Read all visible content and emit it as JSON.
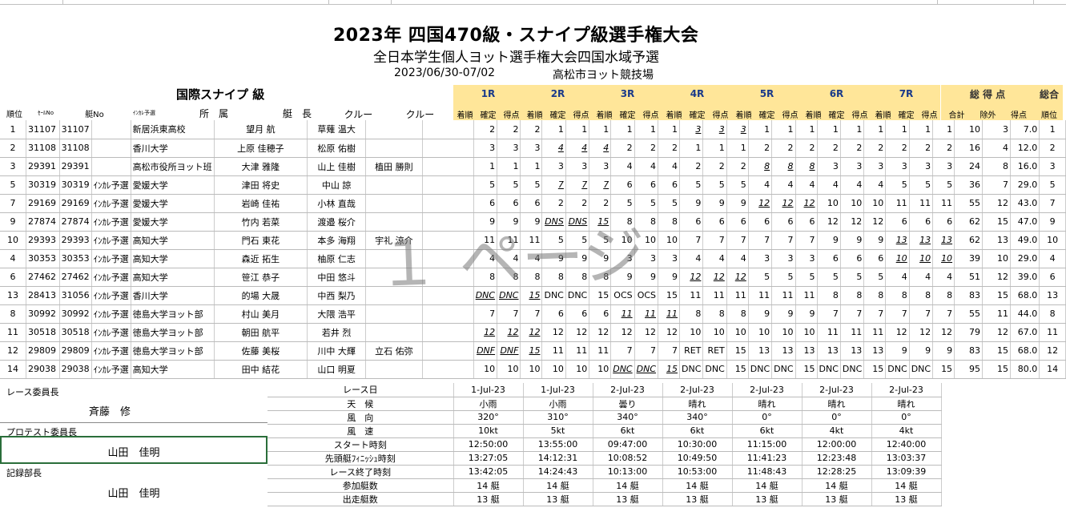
{
  "title": "2023年 四国470級・スナイプ級選手権大会",
  "subtitle": "全日本学生個人ヨット選手権大会四国水域予選",
  "dates": "2023/06/30-07/02",
  "venue": "高松市ヨット競技場",
  "class_name": "国際スナイプ 級",
  "watermark": "１ ページ",
  "race_headers": [
    "1R",
    "2R",
    "3R",
    "4R",
    "5R",
    "6R",
    "7R"
  ],
  "total_header": "総 得 点",
  "overall_header": "総合",
  "columns": {
    "rank": "順位",
    "sail_no": "ｾｰﾙNo",
    "hull_no": "艇No",
    "incare": "ｲﾝｶﾚ予選",
    "affiliation": "所　属",
    "skipper": "艇　長",
    "crew1": "クルー",
    "crew2": "クルー",
    "arrival": "着順",
    "confirmed": "確定",
    "points": "得点",
    "total": "合計",
    "excluded": "除外",
    "score": "得点",
    "overall_rank": "順位"
  },
  "rows": [
    {
      "rank": "1",
      "sail": "31107",
      "hull": "31107",
      "inc": "",
      "aff": "新居浜東高校",
      "skip": "望月 航",
      "crew1": "草薙 温大",
      "crew2": "",
      "races": [
        [
          "2",
          "2",
          "2"
        ],
        [
          "1",
          "1",
          "1"
        ],
        [
          "1",
          "1",
          "1"
        ],
        [
          "3",
          "3",
          "3"
        ],
        [
          "1",
          "1",
          "1"
        ],
        [
          "1",
          "1",
          "1"
        ],
        [
          "1",
          "1",
          "1"
        ]
      ],
      "tot": "10",
      "exc": "3",
      "score": "7.0",
      "ov": "1",
      "em": [
        3
      ]
    },
    {
      "rank": "2",
      "sail": "31108",
      "hull": "31108",
      "inc": "",
      "aff": "香川大学",
      "skip": "上原 佳穂子",
      "crew1": "松原 佑樹",
      "crew2": "",
      "races": [
        [
          "3",
          "3",
          "3"
        ],
        [
          "4",
          "4",
          "4"
        ],
        [
          "2",
          "2",
          "2"
        ],
        [
          "1",
          "1",
          "1"
        ],
        [
          "2",
          "2",
          "2"
        ],
        [
          "2",
          "2",
          "2"
        ],
        [
          "2",
          "2",
          "2"
        ]
      ],
      "tot": "16",
      "exc": "4",
      "score": "12.0",
      "ov": "2",
      "em": [
        1
      ]
    },
    {
      "rank": "3",
      "sail": "29391",
      "hull": "29391",
      "inc": "",
      "aff": "高松市役所ヨット班",
      "skip": "大津 雅隆",
      "crew1": "山上 佳樹",
      "crew2": "植田 勝則",
      "races": [
        [
          "1",
          "1",
          "1"
        ],
        [
          "3",
          "3",
          "3"
        ],
        [
          "4",
          "4",
          "4"
        ],
        [
          "2",
          "2",
          "2"
        ],
        [
          "8",
          "8",
          "8"
        ],
        [
          "3",
          "3",
          "3"
        ],
        [
          "3",
          "3",
          "3"
        ]
      ],
      "tot": "24",
      "exc": "8",
      "score": "16.0",
      "ov": "3",
      "em": [
        4
      ]
    },
    {
      "rank": "5",
      "sail": "30319",
      "hull": "30319",
      "inc": "ｲﾝｶﾚ予選",
      "aff": "愛媛大学",
      "skip": "津田 将史",
      "crew1": "中山 諒",
      "crew2": "",
      "races": [
        [
          "5",
          "5",
          "5"
        ],
        [
          "7",
          "7",
          "7"
        ],
        [
          "6",
          "6",
          "6"
        ],
        [
          "5",
          "5",
          "5"
        ],
        [
          "4",
          "4",
          "4"
        ],
        [
          "4",
          "4",
          "4"
        ],
        [
          "5",
          "5",
          "5"
        ]
      ],
      "tot": "36",
      "exc": "7",
      "score": "29.0",
      "ov": "5",
      "em": [
        1
      ]
    },
    {
      "rank": "7",
      "sail": "29169",
      "hull": "29169",
      "inc": "ｲﾝｶﾚ予選",
      "aff": "愛媛大学",
      "skip": "岩崎 佳祐",
      "crew1": "小林 直哉",
      "crew2": "",
      "races": [
        [
          "6",
          "6",
          "6"
        ],
        [
          "2",
          "2",
          "2"
        ],
        [
          "5",
          "5",
          "5"
        ],
        [
          "9",
          "9",
          "9"
        ],
        [
          "12",
          "12",
          "12"
        ],
        [
          "10",
          "10",
          "10"
        ],
        [
          "11",
          "11",
          "11"
        ]
      ],
      "tot": "55",
      "exc": "12",
      "score": "43.0",
      "ov": "7",
      "em": [
        4
      ]
    },
    {
      "rank": "9",
      "sail": "27874",
      "hull": "27874",
      "inc": "ｲﾝｶﾚ予選",
      "aff": "愛媛大学",
      "skip": "竹内 若菜",
      "crew1": "渡邉 桜介",
      "crew2": "",
      "races": [
        [
          "9",
          "9",
          "9"
        ],
        [
          "DNS",
          "DNS",
          "15"
        ],
        [
          "8",
          "8",
          "8"
        ],
        [
          "6",
          "6",
          "6"
        ],
        [
          "6",
          "6",
          "6"
        ],
        [
          "12",
          "12",
          "12"
        ],
        [
          "6",
          "6",
          "6"
        ]
      ],
      "tot": "62",
      "exc": "15",
      "score": "47.0",
      "ov": "9",
      "em": [
        1
      ]
    },
    {
      "rank": "10",
      "sail": "29393",
      "hull": "29393",
      "inc": "ｲﾝｶﾚ予選",
      "aff": "高知大学",
      "skip": "門石 東花",
      "crew1": "本多 海翔",
      "crew2": "宇礼 涼介",
      "races": [
        [
          "11",
          "11",
          "11"
        ],
        [
          "5",
          "5",
          "5"
        ],
        [
          "10",
          "10",
          "10"
        ],
        [
          "7",
          "7",
          "7"
        ],
        [
          "7",
          "7",
          "7"
        ],
        [
          "9",
          "9",
          "9"
        ],
        [
          "13",
          "13",
          "13"
        ]
      ],
      "tot": "62",
      "exc": "13",
      "score": "49.0",
      "ov": "10",
      "em": [
        6
      ]
    },
    {
      "rank": "4",
      "sail": "30353",
      "hull": "30353",
      "inc": "ｲﾝｶﾚ予選",
      "aff": "高知大学",
      "skip": "森近 拓生",
      "crew1": "柚原 仁志",
      "crew2": "",
      "races": [
        [
          "4",
          "4",
          "4"
        ],
        [
          "9",
          "9",
          "9"
        ],
        [
          "3",
          "3",
          "3"
        ],
        [
          "4",
          "4",
          "4"
        ],
        [
          "3",
          "3",
          "3"
        ],
        [
          "6",
          "6",
          "6"
        ],
        [
          "10",
          "10",
          "10"
        ]
      ],
      "tot": "39",
      "exc": "10",
      "score": "29.0",
      "ov": "4",
      "em": [
        6
      ]
    },
    {
      "rank": "6",
      "sail": "27462",
      "hull": "27462",
      "inc": "ｲﾝｶﾚ予選",
      "aff": "高知大学",
      "skip": "笹江 恭子",
      "crew1": "中田 悠斗",
      "crew2": "",
      "races": [
        [
          "8",
          "8",
          "8"
        ],
        [
          "8",
          "8",
          "8"
        ],
        [
          "9",
          "9",
          "9"
        ],
        [
          "12",
          "12",
          "12"
        ],
        [
          "5",
          "5",
          "5"
        ],
        [
          "5",
          "5",
          "5"
        ],
        [
          "4",
          "4",
          "4"
        ]
      ],
      "tot": "51",
      "exc": "12",
      "score": "39.0",
      "ov": "6",
      "em": [
        3
      ]
    },
    {
      "rank": "13",
      "sail": "28413",
      "hull": "31056",
      "inc": "ｲﾝｶﾚ予選",
      "aff": "香川大学",
      "skip": "的場 大晟",
      "crew1": "中西 梨乃",
      "crew2": "",
      "races": [
        [
          "DNC",
          "DNC",
          "15"
        ],
        [
          "DNC",
          "DNC",
          "15"
        ],
        [
          "OCS",
          "OCS",
          "15"
        ],
        [
          "11",
          "11",
          "11"
        ],
        [
          "11",
          "11",
          "11"
        ],
        [
          "8",
          "8",
          "8"
        ],
        [
          "8",
          "8",
          "8"
        ]
      ],
      "tot": "83",
      "exc": "15",
      "score": "68.0",
      "ov": "13",
      "em": [
        0
      ]
    },
    {
      "rank": "8",
      "sail": "30992",
      "hull": "30992",
      "inc": "ｲﾝｶﾚ予選",
      "aff": "徳島大学ヨット部",
      "skip": "村山 美月",
      "crew1": "大隈 浩平",
      "crew2": "",
      "races": [
        [
          "7",
          "7",
          "7"
        ],
        [
          "6",
          "6",
          "6"
        ],
        [
          "11",
          "11",
          "11"
        ],
        [
          "8",
          "8",
          "8"
        ],
        [
          "9",
          "9",
          "9"
        ],
        [
          "7",
          "7",
          "7"
        ],
        [
          "7",
          "7",
          "7"
        ]
      ],
      "tot": "55",
      "exc": "11",
      "score": "44.0",
      "ov": "8",
      "em": [
        2
      ]
    },
    {
      "rank": "11",
      "sail": "30518",
      "hull": "30518",
      "inc": "ｲﾝｶﾚ予選",
      "aff": "徳島大学ヨット部",
      "skip": "朝田 航平",
      "crew1": "若井 烈",
      "crew2": "",
      "races": [
        [
          "12",
          "12",
          "12"
        ],
        [
          "12",
          "12",
          "12"
        ],
        [
          "12",
          "12",
          "12"
        ],
        [
          "10",
          "10",
          "10"
        ],
        [
          "10",
          "10",
          "10"
        ],
        [
          "11",
          "11",
          "11"
        ],
        [
          "12",
          "12",
          "12"
        ]
      ],
      "tot": "79",
      "exc": "12",
      "score": "67.0",
      "ov": "11",
      "em": [
        0
      ]
    },
    {
      "rank": "12",
      "sail": "29809",
      "hull": "29809",
      "inc": "ｲﾝｶﾚ予選",
      "aff": "徳島大学ヨット部",
      "skip": "佐藤 美桜",
      "crew1": "川中 大輝",
      "crew2": "立石 佑弥",
      "races": [
        [
          "DNF",
          "DNF",
          "15"
        ],
        [
          "11",
          "11",
          "11"
        ],
        [
          "7",
          "7",
          "7"
        ],
        [
          "RET",
          "RET",
          "15"
        ],
        [
          "13",
          "13",
          "13"
        ],
        [
          "13",
          "13",
          "13"
        ],
        [
          "9",
          "9",
          "9"
        ]
      ],
      "tot": "83",
      "exc": "15",
      "score": "68.0",
      "ov": "12",
      "em": [
        0
      ]
    },
    {
      "rank": "14",
      "sail": "29038",
      "hull": "29038",
      "inc": "ｲﾝｶﾚ予選",
      "aff": "高知大学",
      "skip": "田中 結花",
      "crew1": "山口 明夏",
      "crew2": "",
      "races": [
        [
          "10",
          "10",
          "10"
        ],
        [
          "10",
          "10",
          "10"
        ],
        [
          "DNC",
          "DNC",
          "15"
        ],
        [
          "DNC",
          "DNC",
          "15"
        ],
        [
          "DNC",
          "DNC",
          "15"
        ],
        [
          "DNC",
          "DNC",
          "15"
        ],
        [
          "DNC",
          "DNC",
          "15"
        ]
      ],
      "tot": "95",
      "exc": "15",
      "score": "80.0",
      "ov": "14",
      "em": [
        2
      ]
    }
  ],
  "officials": {
    "race_chair_label": "レース委員長",
    "race_chair": "斉藤　修",
    "protest_chair_label": "プロテスト委員長",
    "protest_chair": "山田　佳明",
    "records_chief_label": "記録部長",
    "records_chief": "山田　佳明"
  },
  "race_info": {
    "labels": [
      "レース日",
      "天　候",
      "風　向",
      "風　速",
      "スタート時刻",
      "先頭艇ﾌｨﾆｯｼｭ時刻",
      "レース終了時刻",
      "参加艇数",
      "出走艇数"
    ],
    "values": [
      [
        "1-Jul-23",
        "1-Jul-23",
        "2-Jul-23",
        "2-Jul-23",
        "2-Jul-23",
        "2-Jul-23",
        "2-Jul-23"
      ],
      [
        "小雨",
        "小雨",
        "曇り",
        "晴れ",
        "晴れ",
        "晴れ",
        "晴れ"
      ],
      [
        "320°",
        "310°",
        "340°",
        "340°",
        "0°",
        "0°",
        "0°"
      ],
      [
        "10kt",
        "5kt",
        "6kt",
        "6kt",
        "6kt",
        "4kt",
        "4kt"
      ],
      [
        "12:50:00",
        "13:55:00",
        "09:47:00",
        "10:30:00",
        "11:15:00",
        "12:00:00",
        "12:40:00"
      ],
      [
        "13:27:05",
        "14:12:31",
        "10:08:52",
        "10:49:50",
        "11:41:23",
        "12:23:48",
        "13:03:37"
      ],
      [
        "13:42:05",
        "14:24:43",
        "10:13:00",
        "10:53:00",
        "11:48:43",
        "12:28:25",
        "13:09:39"
      ],
      [
        "14 艇",
        "14 艇",
        "14 艇",
        "14 艇",
        "14 艇",
        "14 艇",
        "14 艇"
      ],
      [
        "13 艇",
        "13 艇",
        "13 艇",
        "13 艇",
        "13 艇",
        "13 艇",
        "13 艇"
      ]
    ]
  },
  "colors": {
    "header_fill": "#ffe699",
    "race_header_text": "#1a3a8a",
    "selection_border": "#2a6e3a"
  }
}
